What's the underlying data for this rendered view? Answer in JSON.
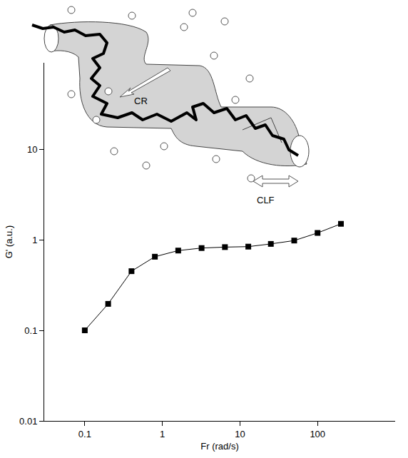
{
  "chart_data": {
    "type": "line",
    "x": [
      0.1,
      0.2,
      0.4,
      0.8,
      1.6,
      3.2,
      6.4,
      12.8,
      25,
      50,
      100,
      200
    ],
    "values": [
      0.1,
      0.196,
      0.45,
      0.65,
      0.76,
      0.81,
      0.83,
      0.84,
      0.9,
      0.98,
      1.19,
      1.5
    ],
    "color": "#000000",
    "marker": "square",
    "line_style": "solid",
    "xlabel": "Fr (rad/s)",
    "ylabel": "G' (a.u.)",
    "xlim": [
      0.03,
      1000
    ],
    "ylim": [
      0.01,
      90
    ],
    "xticks": [
      0.1,
      1,
      10,
      100
    ],
    "yticks": [
      0.01,
      0.1,
      1,
      10
    ],
    "log": true,
    "grid": false,
    "annotations": [
      {
        "text": "CR"
      },
      {
        "text": "CLF"
      }
    ]
  }
}
